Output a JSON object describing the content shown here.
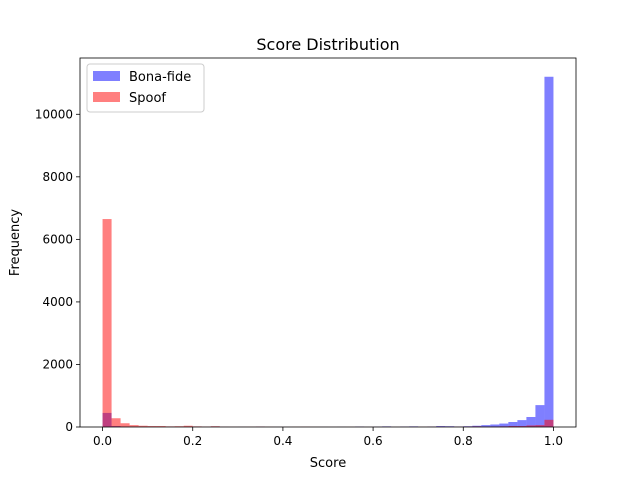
{
  "colors": {
    "bona_fide": "#0000ff",
    "spoof": "#ff0000",
    "axes": "#000000",
    "legend_border": "#cccccc"
  },
  "chart_data": {
    "type": "histogram",
    "title": "Score Distribution",
    "xlabel": "Score",
    "ylabel": "Frequency",
    "xlim": [
      -0.05,
      1.05
    ],
    "ylim": [
      0,
      11800
    ],
    "xticks": [
      0.0,
      0.2,
      0.4,
      0.6,
      0.8,
      1.0
    ],
    "xtick_labels": [
      "0.0",
      "0.2",
      "0.4",
      "0.6",
      "0.8",
      "1.0"
    ],
    "yticks": [
      0,
      2000,
      4000,
      6000,
      8000,
      10000
    ],
    "ytick_labels": [
      "0",
      "2000",
      "4000",
      "6000",
      "8000",
      "10000"
    ],
    "bins": 50,
    "bin_range": [
      0,
      1
    ],
    "legend_position": "upper-left",
    "series": [
      {
        "name": "Bona-fide",
        "color": "#0000ff",
        "alpha": 0.5,
        "counts": [
          450,
          30,
          15,
          10,
          8,
          6,
          5,
          5,
          4,
          10,
          6,
          4,
          15,
          4,
          3,
          4,
          3,
          10,
          3,
          4,
          3,
          2,
          3,
          2,
          3,
          2,
          4,
          2,
          15,
          3,
          10,
          20,
          4,
          15,
          20,
          4,
          15,
          30,
          25,
          15,
          25,
          40,
          60,
          80,
          110,
          160,
          220,
          320,
          700,
          11200
        ]
      },
      {
        "name": "Spoof",
        "color": "#ff0000",
        "alpha": 0.5,
        "counts": [
          6650,
          280,
          120,
          60,
          40,
          30,
          30,
          20,
          25,
          40,
          20,
          15,
          25,
          10,
          8,
          8,
          10,
          15,
          8,
          6,
          5,
          8,
          10,
          6,
          5,
          4,
          5,
          6,
          6,
          5,
          6,
          8,
          6,
          5,
          6,
          8,
          10,
          15,
          10,
          10,
          15,
          20,
          15,
          15,
          20,
          30,
          30,
          50,
          60,
          230
        ]
      }
    ]
  }
}
